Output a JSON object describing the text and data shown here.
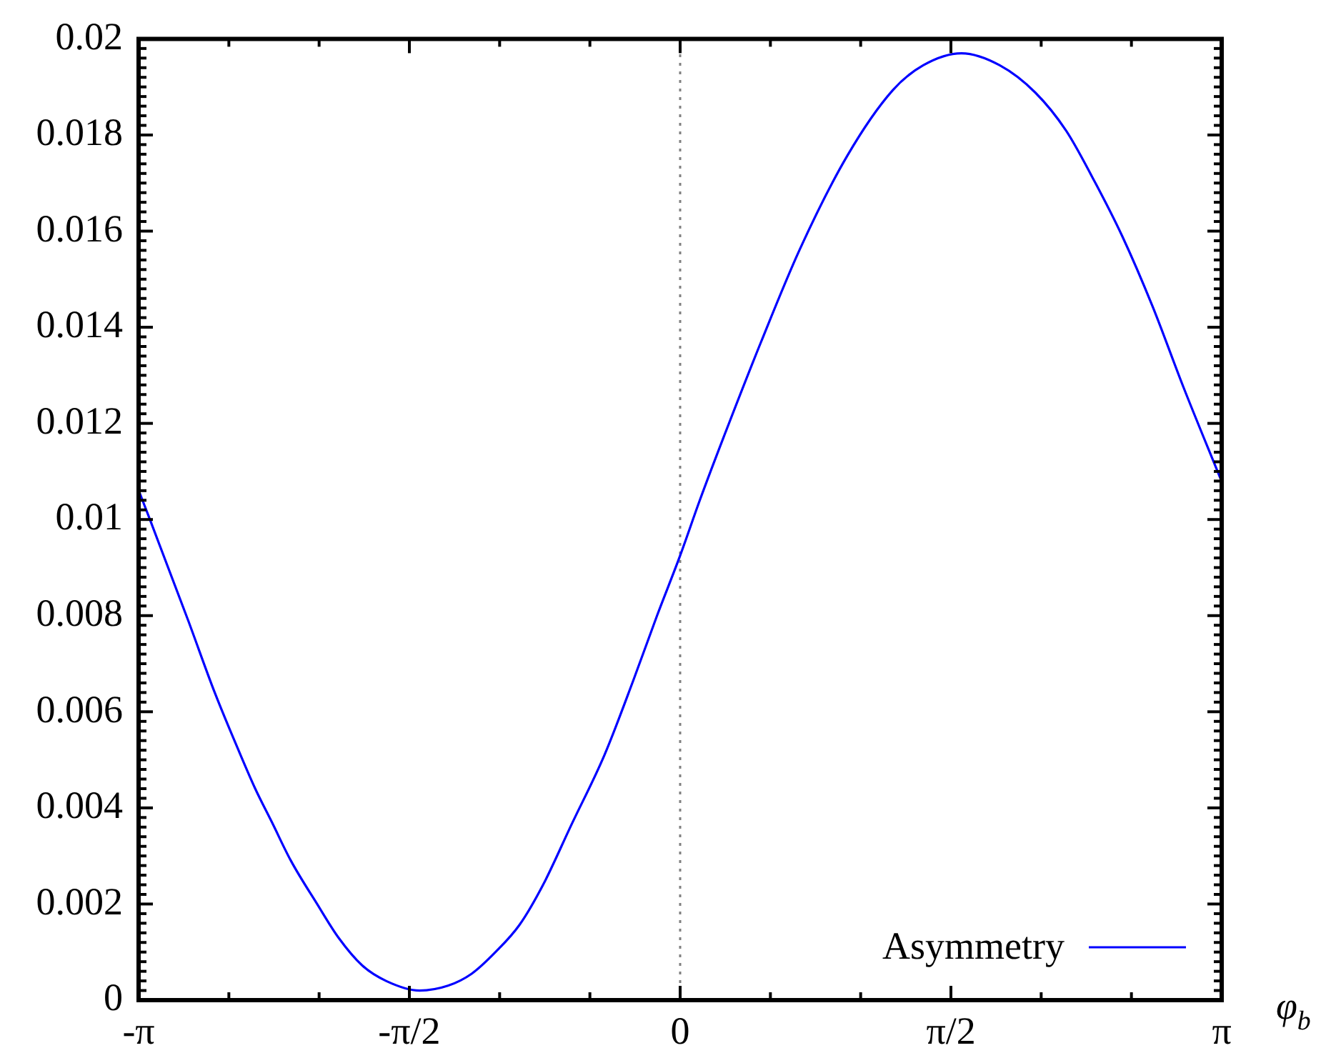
{
  "chart_data": {
    "type": "line",
    "xlabel": "φ$_{b}$",
    "x": [
      -3.14159,
      -3.076,
      -2.854,
      -2.7,
      -2.562,
      -2.465,
      -2.368,
      -2.258,
      -2.106,
      -1.982,
      -1.844,
      -1.706,
      -1.512,
      -1.347,
      -1.209,
      -1.071,
      -0.933,
      -0.795,
      -0.632,
      -0.439,
      -0.273,
      -0.134,
      0,
      0.114,
      0.252,
      0.47,
      0.694,
      0.97,
      1.233,
      1.41,
      1.632,
      1.854,
      2.061,
      2.239,
      2.387,
      2.564,
      2.741,
      2.919,
      3.14159
    ],
    "series": [
      {
        "name": "Asymmetry",
        "color": "#0000ff",
        "values": [
          0.01061,
          0.01,
          0.0079,
          0.0064,
          0.0052,
          0.0044,
          0.0037,
          0.0029,
          0.002,
          0.0013,
          0.00072,
          0.0004,
          0.0002,
          0.0003,
          0.00055,
          0.001,
          0.00156,
          0.0024,
          0.00364,
          0.0051,
          0.00664,
          0.008,
          0.00925,
          0.0104,
          0.01171,
          0.0137,
          0.01562,
          0.01757,
          0.01893,
          0.01945,
          0.0197,
          0.01945,
          0.01888,
          0.01809,
          0.01715,
          0.0159,
          0.01443,
          0.01276,
          0.01079
        ]
      }
    ],
    "xlim": [
      -3.14159,
      3.14159
    ],
    "xticks": [
      {
        "value": -3.14159,
        "label": "-π"
      },
      {
        "value": -2.61799,
        "label": null
      },
      {
        "value": -2.0944,
        "label": null
      },
      {
        "value": -1.5708,
        "label": "-π/2"
      },
      {
        "value": -1.0472,
        "label": null
      },
      {
        "value": -0.5236,
        "label": null
      },
      0,
      {
        "value": 0.5236,
        "label": null
      },
      {
        "value": 1.0472,
        "label": null
      },
      {
        "value": 1.5708,
        "label": "π/2"
      },
      {
        "value": 2.0944,
        "label": null
      },
      {
        "value": 2.61799,
        "label": null
      },
      {
        "value": 3.14159,
        "label": "π"
      }
    ],
    "ylim": [
      0,
      0.02
    ],
    "yticks": [
      0,
      {
        "value": 0.0002,
        "label": null
      },
      {
        "value": 0.0004,
        "label": null
      },
      {
        "value": 0.0006,
        "label": null
      },
      {
        "value": 0.0008,
        "label": null
      },
      {
        "value": 0.001,
        "label": null
      },
      {
        "value": 0.0012,
        "label": null
      },
      {
        "value": 0.0014,
        "label": null
      },
      {
        "value": 0.0016,
        "label": null
      },
      {
        "value": 0.0018,
        "label": null
      },
      0.002,
      {
        "value": 0.0022,
        "label": null
      },
      {
        "value": 0.0024,
        "label": null
      },
      {
        "value": 0.0026,
        "label": null
      },
      {
        "value": 0.0028,
        "label": null
      },
      {
        "value": 0.003,
        "label": null
      },
      {
        "value": 0.0032,
        "label": null
      },
      {
        "value": 0.0034,
        "label": null
      },
      {
        "value": 0.0036,
        "label": null
      },
      {
        "value": 0.0038,
        "label": null
      },
      0.004,
      {
        "value": 0.0042,
        "label": null
      },
      {
        "value": 0.0044,
        "label": null
      },
      {
        "value": 0.0046,
        "label": null
      },
      {
        "value": 0.0048,
        "label": null
      },
      {
        "value": 0.005,
        "label": null
      },
      {
        "value": 0.0052,
        "label": null
      },
      {
        "value": 0.0054,
        "label": null
      },
      {
        "value": 0.0056,
        "label": null
      },
      {
        "value": 0.0058,
        "label": null
      },
      0.006,
      {
        "value": 0.0062,
        "label": null
      },
      {
        "value": 0.0064,
        "label": null
      },
      {
        "value": 0.0066,
        "label": null
      },
      {
        "value": 0.0068,
        "label": null
      },
      {
        "value": 0.007,
        "label": null
      },
      {
        "value": 0.0072,
        "label": null
      },
      {
        "value": 0.0074,
        "label": null
      },
      {
        "value": 0.0076,
        "label": null
      },
      {
        "value": 0.0078,
        "label": null
      },
      0.008,
      {
        "value": 0.0082,
        "label": null
      },
      {
        "value": 0.0084,
        "label": null
      },
      {
        "value": 0.0086,
        "label": null
      },
      {
        "value": 0.0088,
        "label": null
      },
      {
        "value": 0.009,
        "label": null
      },
      {
        "value": 0.0092,
        "label": null
      },
      {
        "value": 0.0094,
        "label": null
      },
      {
        "value": 0.0096,
        "label": null
      },
      {
        "value": 0.0098,
        "label": null
      },
      0.01,
      {
        "value": 0.0102,
        "label": null
      },
      {
        "value": 0.0104,
        "label": null
      },
      {
        "value": 0.0106,
        "label": null
      },
      {
        "value": 0.0108,
        "label": null
      },
      {
        "value": 0.011,
        "label": null
      },
      {
        "value": 0.0112,
        "label": null
      },
      {
        "value": 0.0114,
        "label": null
      },
      {
        "value": 0.0116,
        "label": null
      },
      {
        "value": 0.0118,
        "label": null
      },
      0.012,
      {
        "value": 0.0122,
        "label": null
      },
      {
        "value": 0.0124,
        "label": null
      },
      {
        "value": 0.0126,
        "label": null
      },
      {
        "value": 0.0128,
        "label": null
      },
      {
        "value": 0.013,
        "label": null
      },
      {
        "value": 0.0132,
        "label": null
      },
      {
        "value": 0.0134,
        "label": null
      },
      {
        "value": 0.0136,
        "label": null
      },
      {
        "value": 0.0138,
        "label": null
      },
      0.014,
      {
        "value": 0.0142,
        "label": null
      },
      {
        "value": 0.0144,
        "label": null
      },
      {
        "value": 0.0146,
        "label": null
      },
      {
        "value": 0.0148,
        "label": null
      },
      {
        "value": 0.015,
        "label": null
      },
      {
        "value": 0.0152,
        "label": null
      },
      {
        "value": 0.0154,
        "label": null
      },
      {
        "value": 0.0156,
        "label": null
      },
      {
        "value": 0.0158,
        "label": null
      },
      0.016,
      {
        "value": 0.0162,
        "label": null
      },
      {
        "value": 0.0164,
        "label": null
      },
      {
        "value": 0.0166,
        "label": null
      },
      {
        "value": 0.0168,
        "label": null
      },
      {
        "value": 0.017,
        "label": null
      },
      {
        "value": 0.0172,
        "label": null
      },
      {
        "value": 0.0174,
        "label": null
      },
      {
        "value": 0.0176,
        "label": null
      },
      {
        "value": 0.0178,
        "label": null
      },
      0.018,
      {
        "value": 0.0182,
        "label": null
      },
      {
        "value": 0.0184,
        "label": null
      },
      {
        "value": 0.0186,
        "label": null
      },
      {
        "value": 0.0188,
        "label": null
      },
      {
        "value": 0.019,
        "label": null
      },
      {
        "value": 0.0192,
        "label": null
      },
      {
        "value": 0.0194,
        "label": null
      },
      {
        "value": 0.0196,
        "label": null
      },
      {
        "value": 0.0198,
        "label": null
      },
      0.02
    ],
    "ref_lines": [
      {
        "axis": "x",
        "value": 0,
        "color": "#808080",
        "line_style": "dotted"
      }
    ],
    "legend": "bottom right"
  }
}
